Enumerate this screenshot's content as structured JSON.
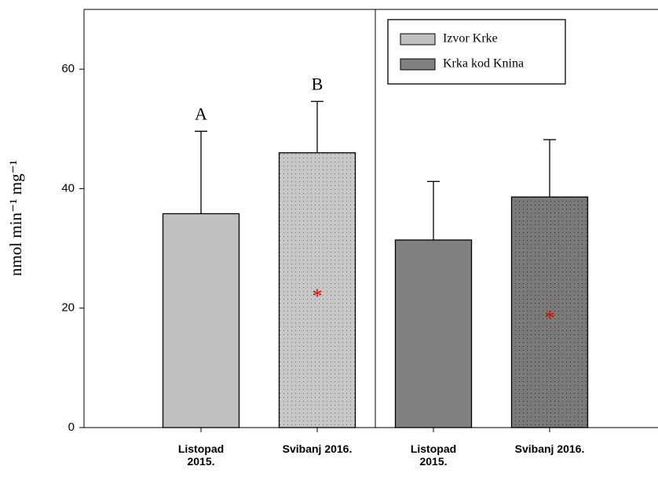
{
  "chart_data": {
    "type": "bar",
    "ylabel": "nmol min⁻¹ mg⁻¹",
    "categories": [
      "Listopad 2015.",
      "Svibanj 2016.",
      "Listopad 2015.",
      "Svibanj 2016."
    ],
    "series": [
      {
        "name": "Izvor Krke",
        "color": "#c0c0c0",
        "values": [
          35.8,
          46.0,
          null,
          null
        ],
        "errors": [
          13.8,
          8.6,
          null,
          null
        ],
        "pattern": [
          null,
          "dots",
          null,
          null
        ]
      },
      {
        "name": "Krka kod Knina",
        "color": "#808080",
        "values": [
          null,
          null,
          31.4,
          38.6
        ],
        "errors": [
          null,
          null,
          9.8,
          9.6
        ],
        "pattern": [
          null,
          null,
          null,
          "dots"
        ]
      }
    ],
    "annotations": [
      {
        "text": "A",
        "category": 0,
        "color": "#000000",
        "position": "above"
      },
      {
        "text": "B",
        "category": 1,
        "color": "#000000",
        "position": "above"
      },
      {
        "text": "*",
        "category": 1,
        "color": "#e00000",
        "position": "inside"
      },
      {
        "text": "*",
        "category": 3,
        "color": "#e00000",
        "position": "inside"
      }
    ],
    "ylim": [
      0,
      70
    ],
    "yticks": [
      0,
      20,
      40,
      60
    ],
    "legend": "upper right"
  }
}
